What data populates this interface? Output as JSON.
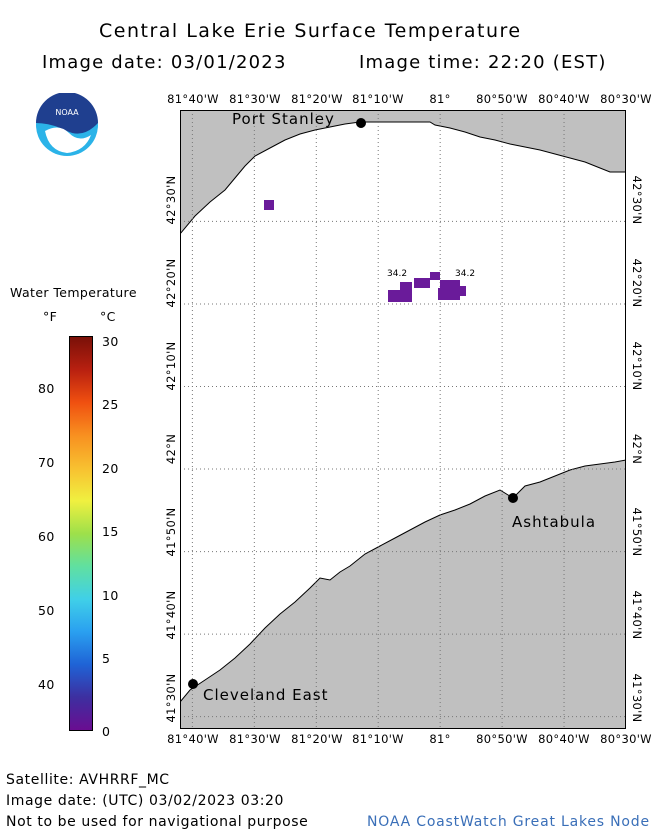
{
  "header": {
    "title": "Central Lake Erie Surface Temperature",
    "image_date": "Image date: 03/01/2023",
    "image_time": "Image time: 22:20 (EST)"
  },
  "logo": {
    "text": "NOAA",
    "icon": "noaa-logo-icon"
  },
  "map": {
    "lon_labels": [
      "81°40'W",
      "81°30'W",
      "81°20'W",
      "81°10'W",
      "81°",
      "80°50'W",
      "80°40'W",
      "80°30'W"
    ],
    "lat_labels": [
      "42°30'N",
      "42°20'N",
      "42°10'N",
      "42°N",
      "41°50'N",
      "41°40'N",
      "41°30'N"
    ],
    "cities": [
      {
        "name": "Port Stanley",
        "lon": -81.215,
        "lat": 42.665
      },
      {
        "name": "Ashtabula",
        "lon": -80.8,
        "lat": 41.897
      },
      {
        "name": "Cleveland East",
        "lon": -81.65,
        "lat": 41.53
      }
    ],
    "data_labels": [
      "34.2",
      "34.2"
    ],
    "land_color": "#c0c0c0",
    "water_color": "#ffffff",
    "pixel_color": "#6a1b9a"
  },
  "legend": {
    "title": "Water Temperature",
    "unit_f": "°F",
    "unit_c": "°C",
    "f_ticks": [
      "80",
      "70",
      "60",
      "50",
      "40"
    ],
    "c_ticks": [
      "30",
      "25",
      "20",
      "15",
      "10",
      "5",
      "0"
    ],
    "colors": [
      "#6a0d91",
      "#3d2fa0",
      "#1f63d6",
      "#2aa0f0",
      "#40d0e8",
      "#60e0a0",
      "#9ee04a",
      "#f0f040",
      "#f8c030",
      "#f89020",
      "#f05010",
      "#b82010",
      "#7a1008"
    ]
  },
  "footer": {
    "satellite": "Satellite: AVHRRF_MC",
    "utc_date": "Image date: (UTC) 03/02/2023  03:20",
    "warning": "Not to be used for navigational purpose",
    "credit": "NOAA CoastWatch Great Lakes Node"
  }
}
